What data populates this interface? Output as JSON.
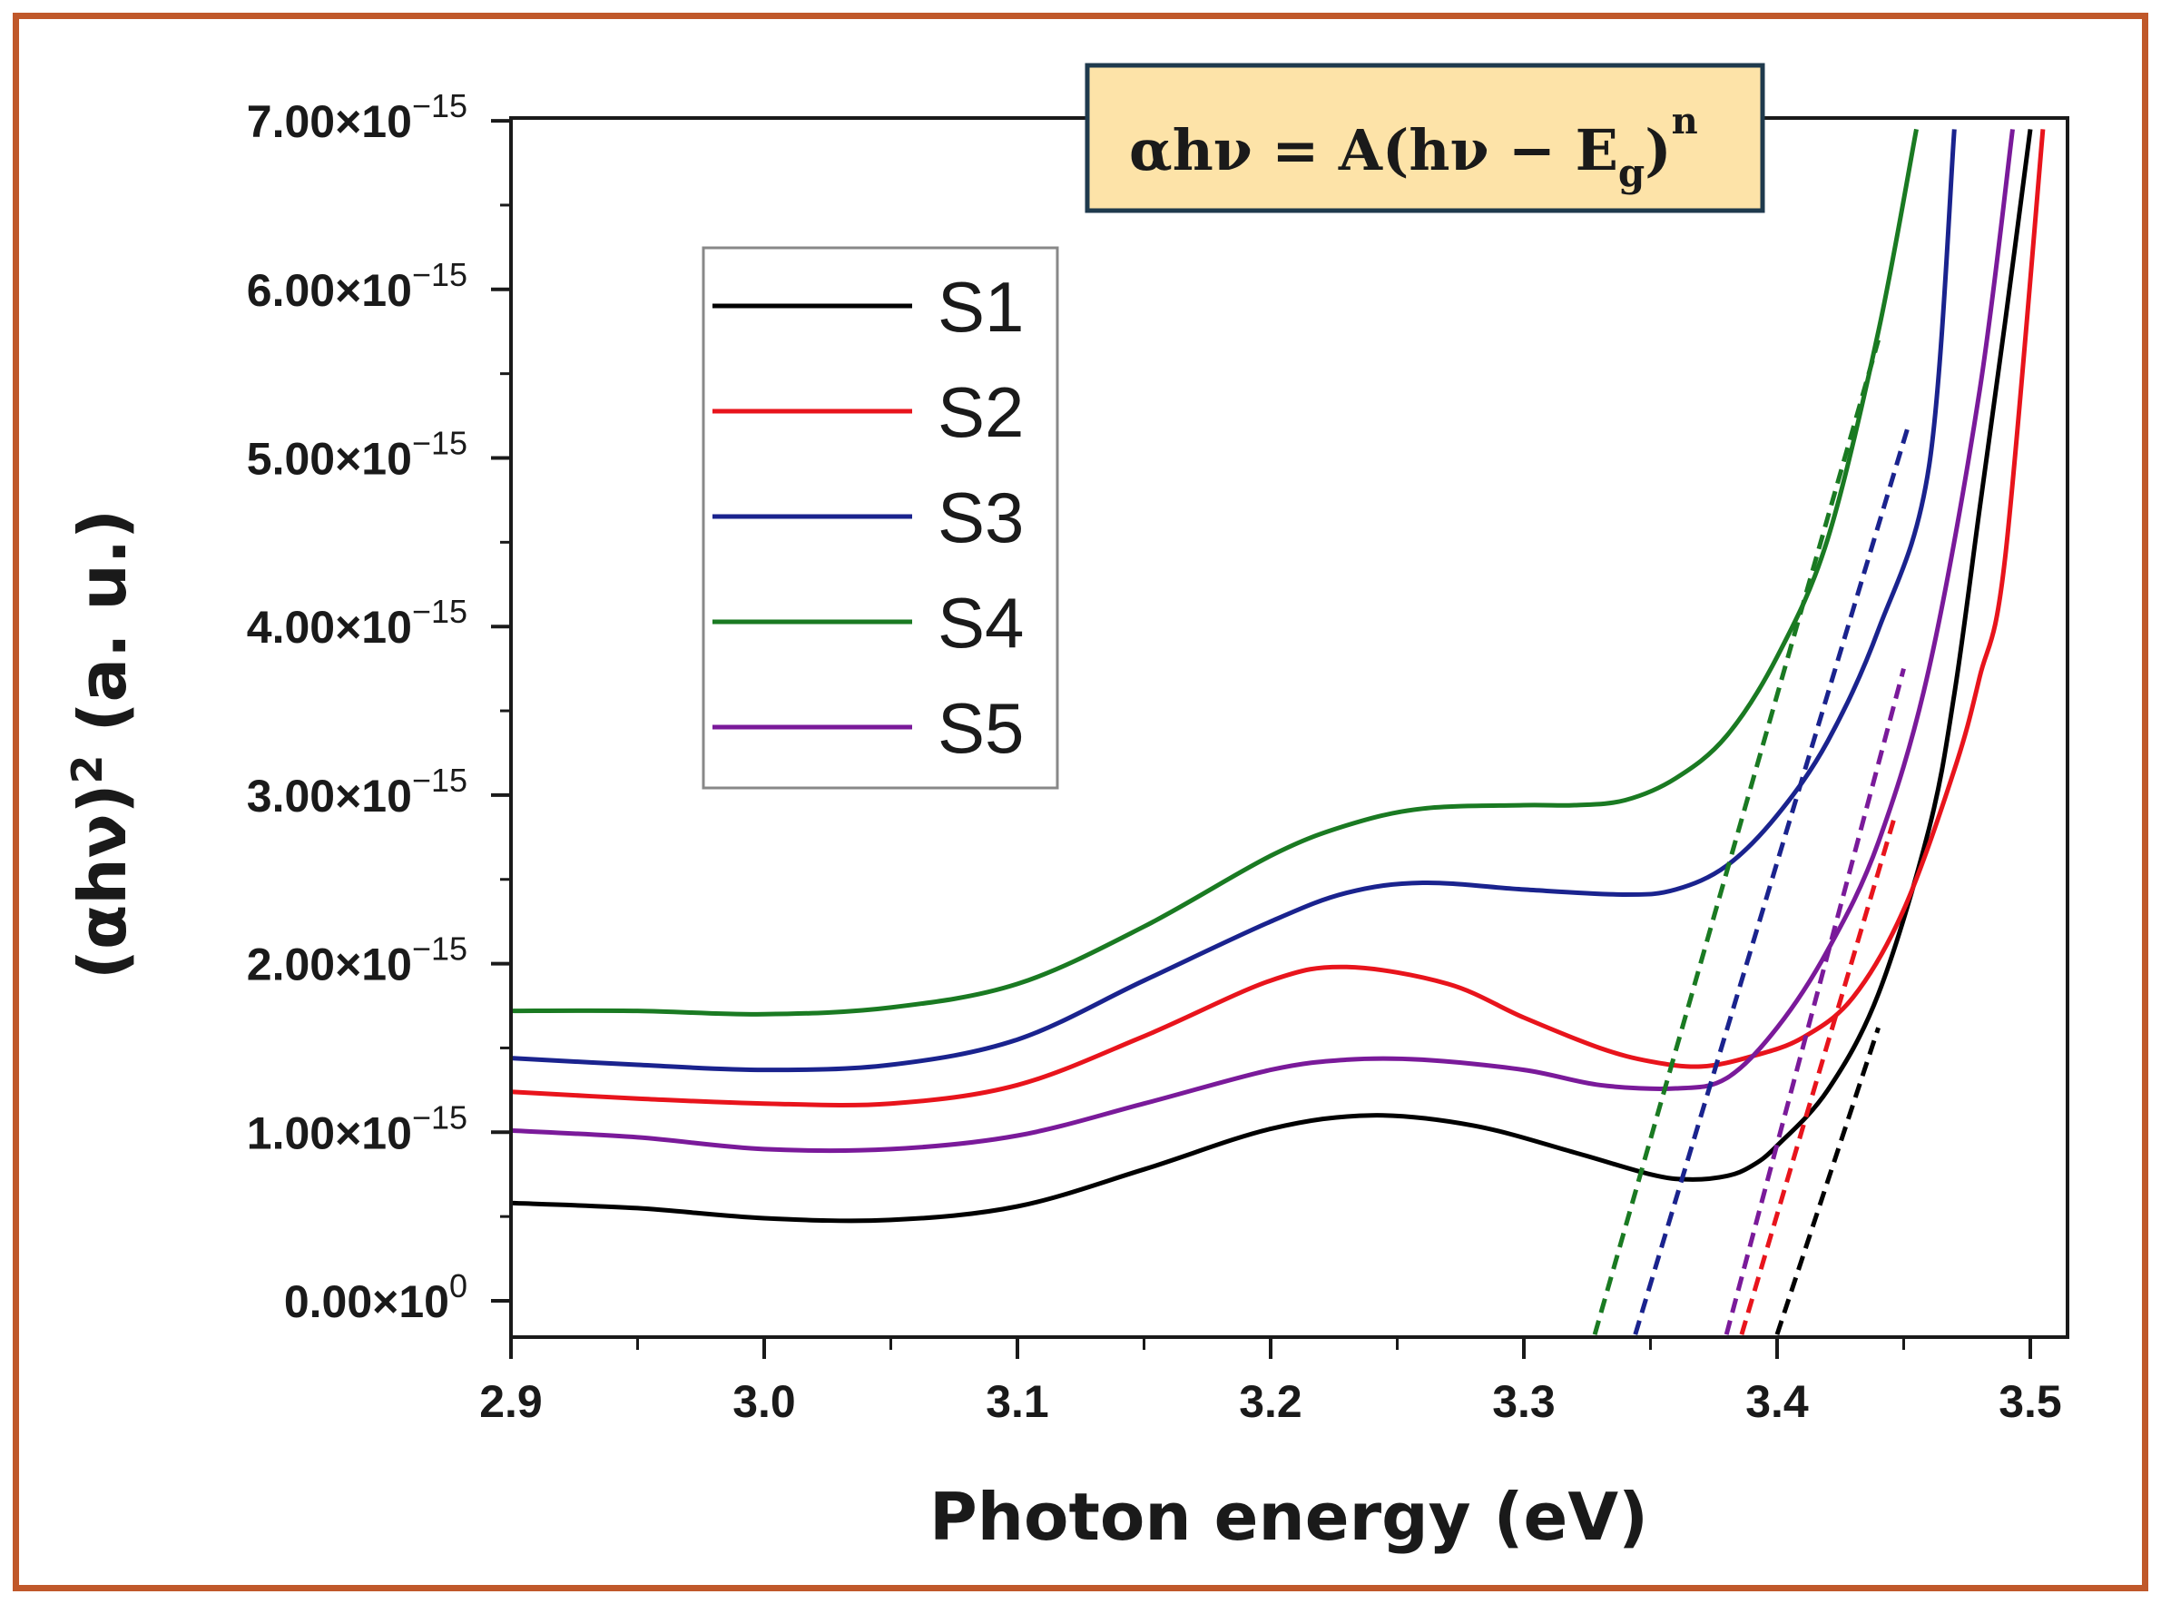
{
  "chart_data": {
    "type": "line",
    "title": "",
    "equation": {
      "lhs": "αhν = A(hν − E",
      "sub": "g",
      "rp": ")",
      "sup": "n"
    },
    "xlabel": "Photon energy (eV)",
    "ylabel": {
      "main": "(αhν)",
      "sup": "2",
      "unit": " (a. u.)"
    },
    "xlim": [
      2.9,
      3.51
    ],
    "ylim": [
      -2.2e-16,
      7e-15
    ],
    "x_ticks": [
      {
        "v": 2.9,
        "label": "2.9"
      },
      {
        "v": 3.0,
        "label": "3.0"
      },
      {
        "v": 3.1,
        "label": "3.1"
      },
      {
        "v": 3.2,
        "label": "3.2"
      },
      {
        "v": 3.3,
        "label": "3.3"
      },
      {
        "v": 3.4,
        "label": "3.4"
      },
      {
        "v": 3.5,
        "label": "3.5"
      }
    ],
    "y_ticks": [
      {
        "v": 0,
        "mant": "0.00×10",
        "exp": "0"
      },
      {
        "v": 1e-15,
        "mant": "1.00×10",
        "exp": "−15"
      },
      {
        "v": 2e-15,
        "mant": "2.00×10",
        "exp": "−15"
      },
      {
        "v": 3e-15,
        "mant": "3.00×10",
        "exp": "−15"
      },
      {
        "v": 4e-15,
        "mant": "4.00×10",
        "exp": "−15"
      },
      {
        "v": 5e-15,
        "mant": "5.00×10",
        "exp": "−15"
      },
      {
        "v": 6e-15,
        "mant": "6.00×10",
        "exp": "−15"
      },
      {
        "v": 7e-15,
        "mant": "7.00×10",
        "exp": "−15"
      }
    ],
    "legend_position": "upper-left",
    "series": [
      {
        "name": "S1",
        "color": "#000000",
        "x": [
          2.9,
          2.95,
          3.0,
          3.05,
          3.1,
          3.15,
          3.2,
          3.24,
          3.28,
          3.32,
          3.35,
          3.365,
          3.38,
          3.39,
          3.4,
          3.42,
          3.44,
          3.46,
          3.47,
          3.48,
          3.49,
          3.5
        ],
        "y": [
          0.58,
          0.55,
          0.49,
          0.48,
          0.56,
          0.78,
          1.02,
          1.1,
          1.04,
          0.88,
          0.75,
          0.72,
          0.74,
          0.8,
          0.92,
          1.25,
          1.82,
          2.8,
          3.6,
          4.7,
          5.8,
          6.95
        ],
        "tangent": [
          [
            3.4,
            -0.2
          ],
          [
            3.44,
            1.62
          ]
        ]
      },
      {
        "name": "S2",
        "color": "#e8141c",
        "x": [
          2.9,
          2.95,
          3.0,
          3.05,
          3.1,
          3.15,
          3.2,
          3.23,
          3.27,
          3.3,
          3.33,
          3.35,
          3.37,
          3.39,
          3.41,
          3.43,
          3.45,
          3.47,
          3.48,
          3.49,
          3.505
        ],
        "y": [
          1.24,
          1.2,
          1.17,
          1.17,
          1.28,
          1.57,
          1.9,
          1.98,
          1.88,
          1.68,
          1.5,
          1.42,
          1.39,
          1.45,
          1.56,
          1.8,
          2.32,
          3.15,
          3.7,
          4.4,
          6.95
        ],
        "tangent": [
          [
            3.386,
            -0.2
          ],
          [
            3.446,
            2.85
          ]
        ]
      },
      {
        "name": "S3",
        "color": "#1a238e",
        "x": [
          2.9,
          2.95,
          3.0,
          3.05,
          3.1,
          3.15,
          3.2,
          3.23,
          3.26,
          3.3,
          3.34,
          3.36,
          3.38,
          3.4,
          3.42,
          3.44,
          3.46,
          3.47
        ],
        "y": [
          1.44,
          1.4,
          1.37,
          1.4,
          1.55,
          1.9,
          2.25,
          2.42,
          2.48,
          2.44,
          2.41,
          2.44,
          2.58,
          2.88,
          3.32,
          3.98,
          4.95,
          6.95
        ],
        "tangent": [
          [
            3.344,
            -0.2
          ],
          [
            3.452,
            5.2
          ]
        ]
      },
      {
        "name": "S4",
        "color": "#1a7a22",
        "x": [
          2.9,
          2.95,
          3.0,
          3.05,
          3.1,
          3.15,
          3.2,
          3.23,
          3.26,
          3.3,
          3.32,
          3.34,
          3.36,
          3.38,
          3.4,
          3.42,
          3.44,
          3.455
        ],
        "y": [
          1.72,
          1.72,
          1.7,
          1.74,
          1.88,
          2.22,
          2.64,
          2.82,
          2.92,
          2.94,
          2.94,
          2.97,
          3.1,
          3.35,
          3.82,
          4.52,
          5.75,
          6.95
        ],
        "tangent": [
          [
            3.328,
            -0.2
          ],
          [
            3.44,
            5.7
          ]
        ]
      },
      {
        "name": "S5",
        "color": "#7a1a9a",
        "x": [
          2.9,
          2.95,
          3.0,
          3.05,
          3.1,
          3.15,
          3.2,
          3.23,
          3.26,
          3.3,
          3.33,
          3.36,
          3.38,
          3.4,
          3.42,
          3.44,
          3.46,
          3.48,
          3.493
        ],
        "y": [
          1.01,
          0.97,
          0.9,
          0.9,
          0.98,
          1.17,
          1.37,
          1.43,
          1.43,
          1.37,
          1.28,
          1.26,
          1.32,
          1.62,
          2.08,
          2.72,
          3.75,
          5.4,
          6.95
        ],
        "tangent": [
          [
            3.38,
            -0.2
          ],
          [
            3.45,
            3.75
          ]
        ]
      }
    ]
  }
}
